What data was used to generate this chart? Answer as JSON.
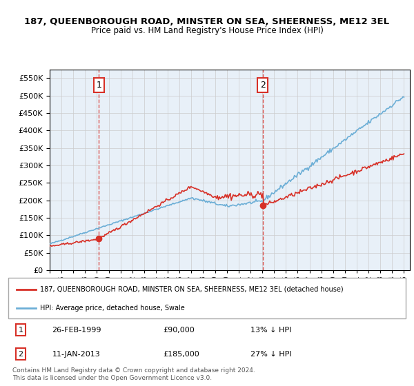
{
  "title": "187, QUEENBOROUGH ROAD, MINSTER ON SEA, SHEERNESS, ME12 3EL",
  "subtitle": "Price paid vs. HM Land Registry's House Price Index (HPI)",
  "hpi_color": "#6baed6",
  "price_color": "#d73027",
  "dashed_color": "#d73027",
  "bg_color": "#e8f0f8",
  "ylim": [
    0,
    575000
  ],
  "yticks": [
    0,
    50000,
    100000,
    150000,
    200000,
    250000,
    300000,
    350000,
    400000,
    450000,
    500000,
    550000
  ],
  "sale1_year": 1999.16,
  "sale1_price": 90000,
  "sale2_year": 2013.03,
  "sale2_price": 185000,
  "legend_line1": "187, QUEENBOROUGH ROAD, MINSTER ON SEA, SHEERNESS, ME12 3EL (detached house)",
  "legend_line2": "HPI: Average price, detached house, Swale",
  "footer": "Contains HM Land Registry data © Crown copyright and database right 2024.\nThis data is licensed under the Open Government Licence v3.0.",
  "table_rows": [
    {
      "num": "1",
      "date": "26-FEB-1999",
      "price": "£90,000",
      "hpi": "13% ↓ HPI"
    },
    {
      "num": "2",
      "date": "11-JAN-2013",
      "price": "£185,000",
      "hpi": "27% ↓ HPI"
    }
  ]
}
